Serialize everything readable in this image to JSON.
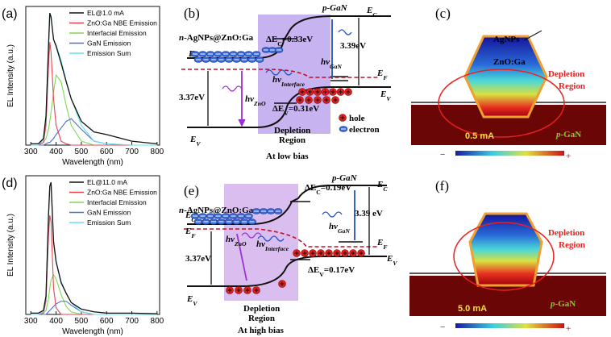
{
  "chart_data": [
    {
      "type": "line",
      "label": "(a)",
      "xlabel": "Wavelength (nm)",
      "ylabel": "EL Intensity (a.u.)",
      "xlim": [
        280,
        810
      ],
      "ylim": [
        0,
        1.05
      ],
      "xticks": [
        300,
        400,
        500,
        600,
        700,
        800
      ],
      "legend": "upper right",
      "x": [
        300,
        330,
        350,
        360,
        370,
        375,
        380,
        390,
        400,
        420,
        440,
        460,
        500,
        550,
        600,
        700,
        800
      ],
      "series": [
        {
          "name": "EL@1.0 mA",
          "color": "#111111",
          "values": [
            0.01,
            0.01,
            0.05,
            0.22,
            0.75,
            1.0,
            0.97,
            0.8,
            0.75,
            0.62,
            0.48,
            0.35,
            0.18,
            0.1,
            0.08,
            0.03,
            0.01
          ]
        },
        {
          "name": "ZnO:Ga NBE Emission",
          "color": "#e8454f",
          "values": [
            0,
            0,
            0.02,
            0.15,
            0.6,
            0.78,
            0.7,
            0.35,
            0.15,
            0.03,
            0.01,
            0,
            0,
            0,
            0,
            0,
            0
          ]
        },
        {
          "name": "Interfacial Emission",
          "color": "#7ed957",
          "values": [
            0,
            0,
            0.02,
            0.05,
            0.12,
            0.18,
            0.25,
            0.4,
            0.53,
            0.48,
            0.3,
            0.15,
            0.03,
            0,
            0,
            0,
            0
          ]
        },
        {
          "name": "GaN Emission",
          "color": "#4a6fd6",
          "values": [
            0,
            0,
            0,
            0.01,
            0.02,
            0.02,
            0.03,
            0.05,
            0.08,
            0.13,
            0.18,
            0.2,
            0.12,
            0.03,
            0.01,
            0,
            0
          ]
        },
        {
          "name": "Emission Sum",
          "color": "#66e0f0",
          "values": [
            0,
            0,
            0.04,
            0.21,
            0.74,
            0.98,
            0.98,
            0.8,
            0.76,
            0.64,
            0.49,
            0.35,
            0.15,
            0.03,
            0.01,
            0,
            0
          ]
        }
      ]
    },
    {
      "type": "line",
      "label": "(d)",
      "xlabel": "Wavelength (nm)",
      "ylabel": "EL Intensity (a.u.)",
      "xlim": [
        280,
        810
      ],
      "ylim": [
        0,
        1.05
      ],
      "xticks": [
        300,
        400,
        500,
        600,
        700,
        800
      ],
      "legend": "upper right",
      "x": [
        300,
        330,
        350,
        360,
        370,
        375,
        380,
        390,
        400,
        420,
        440,
        460,
        500,
        550,
        600,
        700,
        800
      ],
      "series": [
        {
          "name": "EL@11.0 mA",
          "color": "#111111",
          "values": [
            0.01,
            0.01,
            0.03,
            0.14,
            0.75,
            0.97,
            1.0,
            0.55,
            0.4,
            0.24,
            0.16,
            0.09,
            0.04,
            0.02,
            0.01,
            0.01,
            0.005
          ]
        },
        {
          "name": "ZnO:Ga NBE Emission",
          "color": "#e8454f",
          "values": [
            0,
            0,
            0.01,
            0.1,
            0.6,
            0.75,
            0.7,
            0.2,
            0.05,
            0,
            0,
            0,
            0,
            0,
            0,
            0,
            0
          ]
        },
        {
          "name": "Interfacial Emission",
          "color": "#7ed957",
          "values": [
            0,
            0,
            0.01,
            0.03,
            0.12,
            0.2,
            0.26,
            0.3,
            0.27,
            0.15,
            0.06,
            0.02,
            0,
            0,
            0,
            0,
            0
          ]
        },
        {
          "name": "GaN Emission",
          "color": "#4a6fd6",
          "values": [
            0,
            0,
            0,
            0,
            0.02,
            0.03,
            0.04,
            0.06,
            0.08,
            0.1,
            0.1,
            0.07,
            0.02,
            0,
            0,
            0,
            0
          ]
        },
        {
          "name": "Emission Sum",
          "color": "#66e0f0",
          "values": [
            0,
            0,
            0.02,
            0.13,
            0.74,
            0.98,
            1.0,
            0.56,
            0.4,
            0.25,
            0.16,
            0.09,
            0.02,
            0,
            0,
            0,
            0
          ]
        }
      ]
    }
  ],
  "panels": {
    "b": {
      "label": "(b)",
      "title": [
        "n",
        "",
        "-AgNPs@ZnO:Ga"
      ],
      "pgan": "p-GaN",
      "ec_right": [
        "E",
        "C"
      ],
      "ec_left": [
        "E",
        "C"
      ],
      "ef_right": [
        "E",
        "F"
      ],
      "ev_right": [
        "E",
        "V"
      ],
      "ev_left": [
        "E",
        "V"
      ],
      "dEc": [
        "ΔE",
        "C",
        "=0.33eV"
      ],
      "gap_right": "3.39eV",
      "gap_left": "3.37eV",
      "hv_gan": [
        "hν",
        "GaN"
      ],
      "hv_interface": [
        "hν",
        "Interface"
      ],
      "hv_zno": [
        "hν",
        "ZnO"
      ],
      "dEv": [
        "ΔE",
        "V",
        "=0.31eV"
      ],
      "hole": "hole",
      "electron": "electron",
      "depletion": "Depletion",
      "region": "Region",
      "bias": "At low bias"
    },
    "e": {
      "label": "(e)",
      "title": [
        "n",
        "",
        "-AgNPs@ZnO:Ga"
      ],
      "pgan": "p-GaN",
      "ec_right": [
        "E",
        "C"
      ],
      "ec_left": [
        "E",
        "C"
      ],
      "ef_left": [
        "E",
        "F"
      ],
      "ef_right": [
        "E",
        "F"
      ],
      "ev_right": [
        "E",
        "V"
      ],
      "ev_left": [
        "E",
        "V"
      ],
      "dEc": [
        "ΔE",
        "C",
        "=0.19eV"
      ],
      "gap_right": "3.39 eV",
      "gap_left": "3.37eV",
      "hv_gan": [
        "hν",
        "GaN"
      ],
      "hv_interface": [
        "hν",
        "Interface"
      ],
      "hv_zno": [
        "hν",
        "ZnO"
      ],
      "dEv": [
        "ΔE",
        "V",
        "=0.17eV"
      ],
      "depletion": "Depletion",
      "region": "Region",
      "bias": "At high bias"
    },
    "c": {
      "label": "(c)",
      "agnps": "AgNPs",
      "zno": "ZnO:Ga",
      "depletion": "Depletion",
      "region": "Region",
      "current": "0.5 mA",
      "pgan": [
        "p",
        "",
        "-GaN"
      ],
      "minus": "−",
      "plus": "+"
    },
    "f": {
      "label": "(f)",
      "depletion": "Depletion",
      "region": "Region",
      "current": "5.0 mA",
      "pgan": [
        "p",
        "",
        "-GaN"
      ],
      "minus": "−",
      "plus": "+"
    }
  }
}
